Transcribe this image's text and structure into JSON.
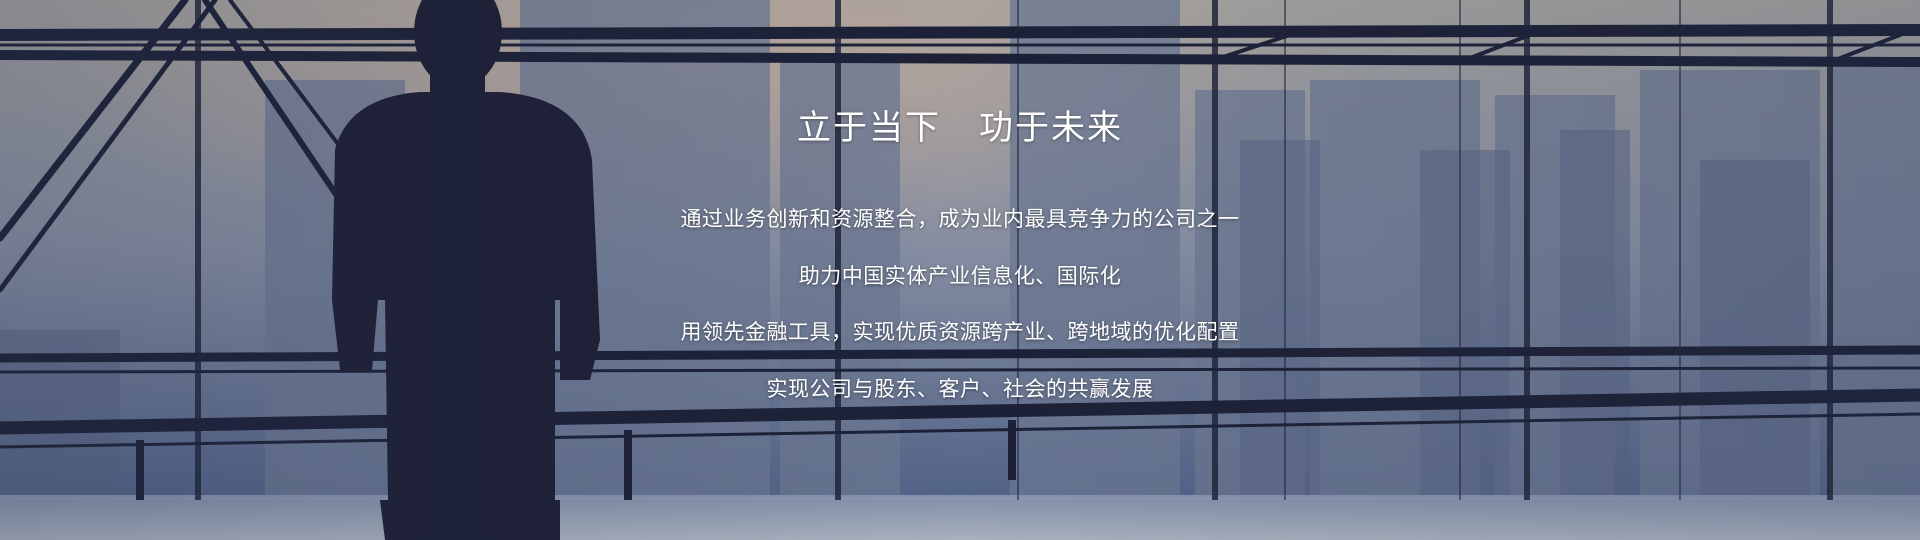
{
  "banner": {
    "headline_left": "立于当下",
    "headline_right": "功于未来",
    "lines": [
      "通过业务创新和资源整合，成为业内最具竞争力的公司之一",
      "助力中国实体产业信息化、国际化",
      "用领先金融工具，实现优质资源跨产业、跨地域的优化配置",
      "实现公司与股东、客户、社会的共赢发展"
    ],
    "background_image": "businessman-silhouette-city-window"
  }
}
